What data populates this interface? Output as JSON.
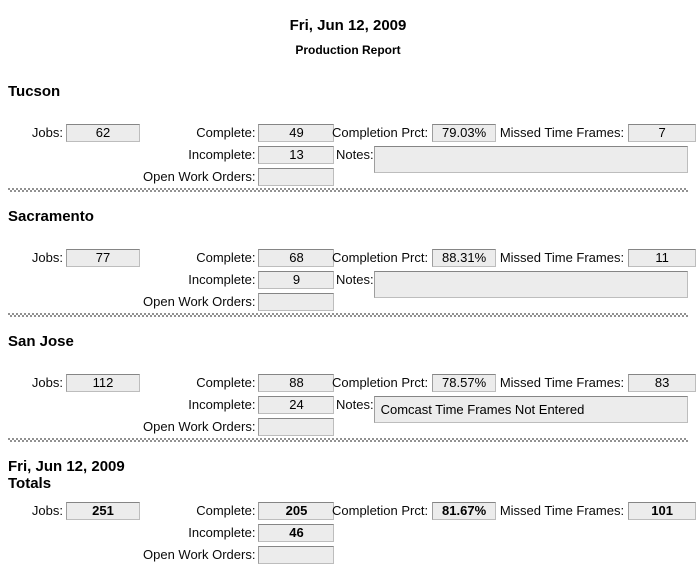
{
  "header": {
    "date": "Fri, Jun 12, 2009",
    "title": "Production Report"
  },
  "labels": {
    "jobs": "Jobs:",
    "complete": "Complete:",
    "incomplete": "Incomplete:",
    "open_work_orders": "Open Work Orders:",
    "completion_prct": "Completion Prct:",
    "missed_time_frames": "Missed Time Frames:",
    "notes": "Notes:"
  },
  "sections": [
    {
      "title": "Tucson",
      "jobs": "62",
      "complete": "49",
      "incomplete": "13",
      "open_work_orders": "",
      "completion_prct": "79.03%",
      "missed_time_frames": "7",
      "notes": ""
    },
    {
      "title": "Sacramento",
      "jobs": "77",
      "complete": "68",
      "incomplete": "9",
      "open_work_orders": "",
      "completion_prct": "88.31%",
      "missed_time_frames": "11",
      "notes": ""
    },
    {
      "title": "San Jose",
      "jobs": "112",
      "complete": "88",
      "incomplete": "24",
      "open_work_orders": "",
      "completion_prct": "78.57%",
      "missed_time_frames": "83",
      "notes": "Comcast Time Frames Not Entered"
    },
    {
      "title_line1": "Fri, Jun 12, 2009",
      "title_line2": "Totals",
      "jobs": "251",
      "complete": "205",
      "incomplete": "46",
      "open_work_orders": "",
      "completion_prct": "81.67%",
      "missed_time_frames": "101"
    }
  ],
  "colors": {
    "field_bg": "#ececec",
    "field_border": "#bdbdbd",
    "field_border_top": "#858585",
    "separator": "#919191",
    "text": "#000000"
  }
}
